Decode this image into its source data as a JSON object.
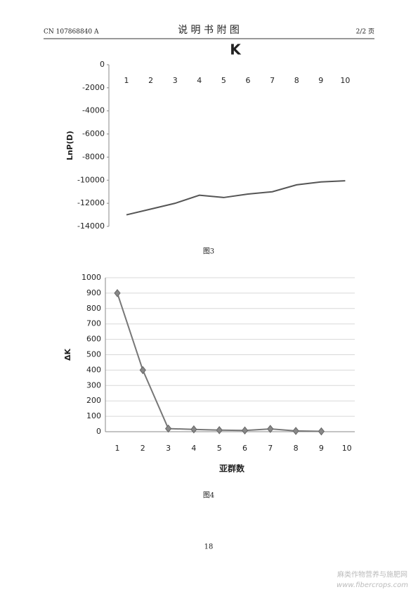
{
  "header": {
    "left": "CN 107868840 A",
    "center": "说 明 书 附 图",
    "right": "2/2 页"
  },
  "chart_data": [
    {
      "type": "line",
      "title": "K",
      "y_label": "LnP(D)",
      "caption": "图3",
      "categories": [
        1,
        2,
        3,
        4,
        5,
        6,
        7,
        8,
        9,
        10
      ],
      "values": [
        -13000,
        -12500,
        -12000,
        -11300,
        -11500,
        -11200,
        -11000,
        -10400,
        -10150,
        -10050
      ],
      "color": "#555555",
      "ylim": [
        -14000,
        0
      ],
      "yticks": [
        0,
        -2000,
        -4000,
        -6000,
        -8000,
        -10000,
        -12000,
        -14000
      ],
      "grid": false,
      "markers": false
    },
    {
      "type": "line",
      "y_label": "ΔK",
      "x_label": "亚群数",
      "caption": "图4",
      "categories": [
        1,
        2,
        3,
        4,
        5,
        6,
        7,
        8,
        9,
        10
      ],
      "values": [
        900,
        400,
        20,
        15,
        10,
        8,
        18,
        5,
        2,
        null
      ],
      "color": "#777777",
      "ylim": [
        0,
        1000
      ],
      "yticks": [
        0,
        100,
        200,
        300,
        400,
        500,
        600,
        700,
        800,
        900,
        1000
      ],
      "grid": true,
      "markers": true
    }
  ],
  "footer": {
    "page": "18",
    "watermark": "麻类作物营养与施肥网",
    "watermark_url": "www.fibercrops.com"
  }
}
